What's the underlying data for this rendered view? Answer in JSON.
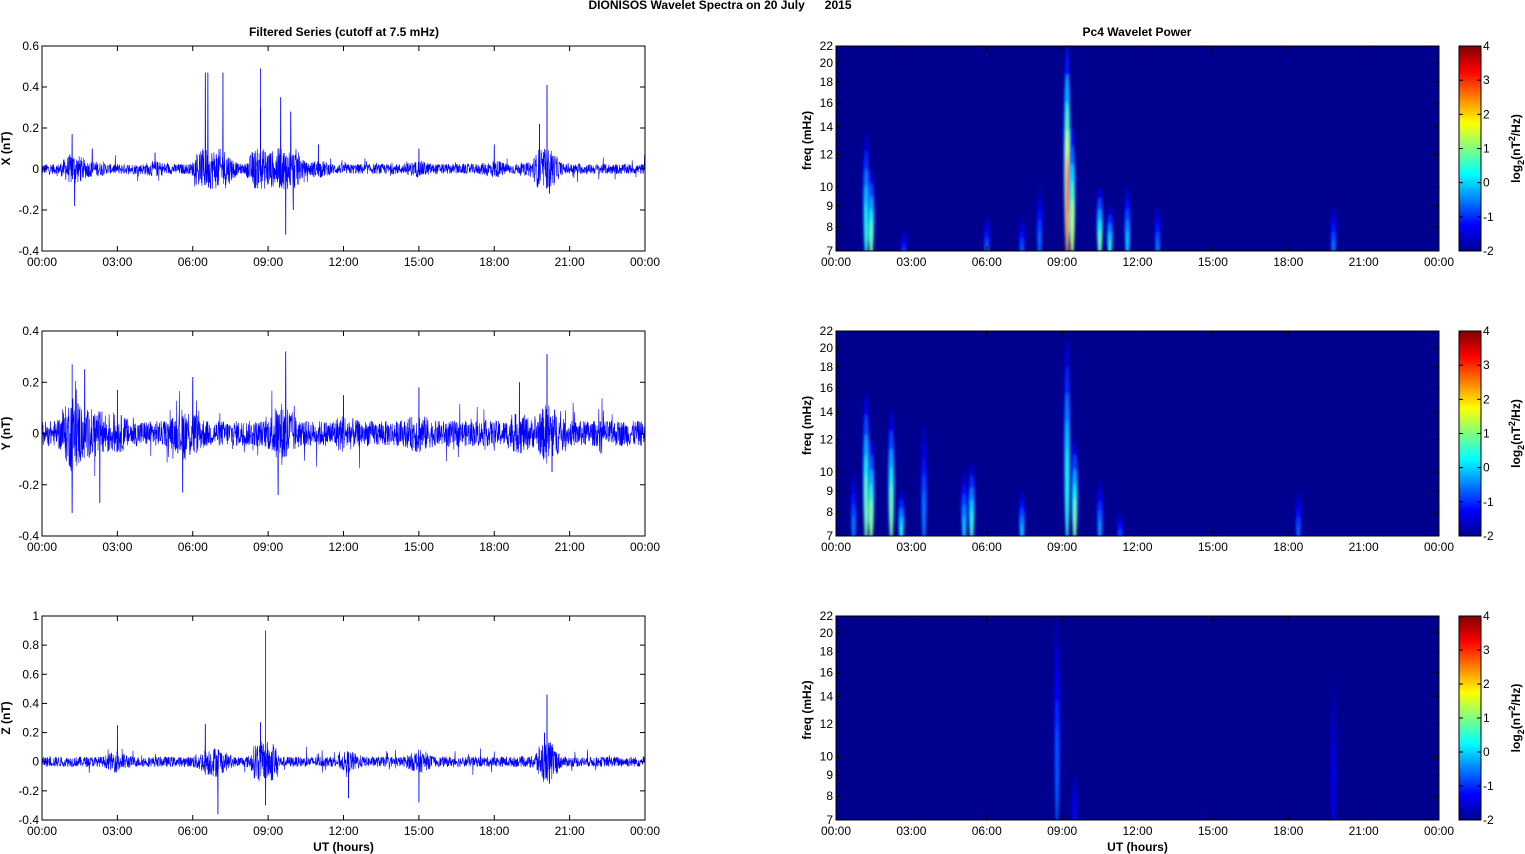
{
  "figure": {
    "title": "DIONISOS Wavelet Spectra on 20 July      2015",
    "left_title": "Filtered Series (cutoff at 7.5 mHz)",
    "right_title": "Pc4 Wavelet Power",
    "xlabel": "UT (hours)"
  },
  "colors": {
    "trace": "#0000ff",
    "spectrogram_background": "#00008f",
    "axis": "#000000",
    "colormap": "jet"
  },
  "chart_data": [
    {
      "type": "line",
      "title": "Filtered Series (cutoff at 7.5 mHz)",
      "ylabel": "X (nT)",
      "xlabel": "",
      "x_tick_labels": [
        "00:00",
        "03:00",
        "06:00",
        "09:00",
        "12:00",
        "15:00",
        "18:00",
        "21:00",
        "00:00"
      ],
      "xlim_hours": [
        0,
        24
      ],
      "ylim": [
        -0.4,
        0.6
      ],
      "y_ticks": [
        -0.4,
        -0.2,
        0,
        0.2,
        0.4,
        0.6
      ],
      "y_tick_labels": [
        "-0.4",
        "-0.2",
        "0",
        "0.2",
        "0.4",
        "0.6"
      ],
      "grid": false,
      "noise_amplitude": 0.025,
      "series": [
        {
          "values": [
            [
              0,
              0
            ],
            [
              1.2,
              0.17
            ],
            [
              1.3,
              -0.18
            ],
            [
              2.0,
              0.1
            ],
            [
              4.5,
              0.08
            ],
            [
              6.5,
              0.47
            ],
            [
              6.6,
              0.47
            ],
            [
              7.2,
              0.47
            ],
            [
              8.7,
              0.49
            ],
            [
              8.7,
              0.3
            ],
            [
              9.5,
              0.35
            ],
            [
              9.7,
              -0.32
            ],
            [
              9.9,
              0.28
            ],
            [
              10,
              -0.2
            ],
            [
              11,
              0.12
            ],
            [
              15,
              0.1
            ],
            [
              18,
              0.12
            ],
            [
              19.8,
              0.22
            ],
            [
              20.1,
              0.41
            ],
            [
              20.2,
              -0.12
            ],
            [
              24,
              0
            ]
          ]
        }
      ]
    },
    {
      "type": "line",
      "title": "",
      "ylabel": "Y (nT)",
      "xlabel": "",
      "x_tick_labels": [
        "00:00",
        "03:00",
        "06:00",
        "09:00",
        "12:00",
        "15:00",
        "18:00",
        "21:00",
        "00:00"
      ],
      "xlim_hours": [
        0,
        24
      ],
      "ylim": [
        -0.4,
        0.4
      ],
      "y_ticks": [
        -0.4,
        -0.2,
        0,
        0.2,
        0.4
      ],
      "y_tick_labels": [
        "-0.4",
        "-0.2",
        "0",
        "0.2",
        "0.4"
      ],
      "grid": false,
      "noise_amplitude": 0.05,
      "series": [
        {
          "values": [
            [
              0,
              0
            ],
            [
              1.2,
              0.27
            ],
            [
              1.2,
              -0.31
            ],
            [
              1.7,
              0.25
            ],
            [
              2.3,
              -0.27
            ],
            [
              3.0,
              0.17
            ],
            [
              5.6,
              -0.23
            ],
            [
              6.0,
              0.22
            ],
            [
              9.4,
              -0.24
            ],
            [
              9.7,
              0.32
            ],
            [
              12,
              0.15
            ],
            [
              15,
              0.18
            ],
            [
              19,
              0.2
            ],
            [
              20.1,
              0.31
            ],
            [
              20.3,
              -0.15
            ],
            [
              24,
              0
            ]
          ]
        }
      ]
    },
    {
      "type": "line",
      "title": "",
      "ylabel": "Z (nT)",
      "xlabel": "UT (hours)",
      "x_tick_labels": [
        "00:00",
        "03:00",
        "06:00",
        "09:00",
        "12:00",
        "15:00",
        "18:00",
        "21:00",
        "00:00"
      ],
      "xlim_hours": [
        0,
        24
      ],
      "ylim": [
        -0.4,
        1
      ],
      "y_ticks": [
        -0.4,
        -0.2,
        0,
        0.2,
        0.4,
        0.6,
        0.8,
        1
      ],
      "y_tick_labels": [
        "-0.4",
        "-0.2",
        "0",
        "0.2",
        "0.4",
        "0.6",
        "0.8",
        "1"
      ],
      "grid": false,
      "noise_amplitude": 0.035,
      "series": [
        {
          "values": [
            [
              0,
              0
            ],
            [
              3,
              0.25
            ],
            [
              6.5,
              0.26
            ],
            [
              7.0,
              -0.36
            ],
            [
              8.7,
              0.27
            ],
            [
              8.9,
              0.9
            ],
            [
              8.9,
              -0.3
            ],
            [
              12.2,
              -0.25
            ],
            [
              15.0,
              -0.28
            ],
            [
              20.0,
              0.2
            ],
            [
              20.1,
              0.46
            ],
            [
              20.2,
              -0.15
            ],
            [
              24,
              0
            ]
          ]
        }
      ]
    },
    {
      "type": "heatmap",
      "title": "Pc4 Wavelet Power",
      "ylabel": "freq (mHz)",
      "xlabel": "",
      "x_tick_labels": [
        "00:00",
        "03:00",
        "06:00",
        "09:00",
        "12:00",
        "15:00",
        "18:00",
        "21:00",
        "00:00"
      ],
      "xlim_hours": [
        0,
        24
      ],
      "y_scale": "log",
      "ylim_mhz": [
        7,
        22
      ],
      "y_ticks": [
        7,
        8,
        9,
        10,
        12,
        14,
        16,
        18,
        20,
        22
      ],
      "y_tick_labels": [
        "7",
        "8",
        "9",
        "10",
        "12",
        "14",
        "16",
        "18",
        "20",
        "22"
      ],
      "colorbar": {
        "label": "log2(nT2/Hz)",
        "label_parts": [
          "log",
          "2",
          "(nT",
          "2",
          "/Hz)"
        ],
        "range": [
          -2,
          4
        ],
        "ticks": [
          -2,
          -1,
          0,
          1,
          2,
          3,
          4
        ],
        "tick_labels": [
          "-2",
          "-1",
          "0",
          "1",
          "2",
          "3",
          "4"
        ]
      },
      "features": [
        {
          "t_hours": 1.2,
          "f_top_mhz": 13.5,
          "level": 0.5
        },
        {
          "t_hours": 1.4,
          "f_top_mhz": 11,
          "level": 1
        },
        {
          "t_hours": 2.7,
          "f_top_mhz": 7.8,
          "level": -0.5
        },
        {
          "t_hours": 6.0,
          "f_top_mhz": 8.5,
          "level": -0.5
        },
        {
          "t_hours": 7.4,
          "f_top_mhz": 8.5,
          "level": -0.6
        },
        {
          "t_hours": 8.1,
          "f_top_mhz": 10,
          "level": -0.6
        },
        {
          "t_hours": 9.2,
          "f_top_mhz": 22,
          "level": 2.5
        },
        {
          "t_hours": 9.4,
          "f_top_mhz": 14,
          "level": 1.5
        },
        {
          "t_hours": 10.5,
          "f_top_mhz": 10,
          "level": 1
        },
        {
          "t_hours": 10.9,
          "f_top_mhz": 9,
          "level": 0.5
        },
        {
          "t_hours": 11.6,
          "f_top_mhz": 10,
          "level": 0
        },
        {
          "t_hours": 12.8,
          "f_top_mhz": 9,
          "level": -0.5
        },
        {
          "t_hours": 19.8,
          "f_top_mhz": 9,
          "level": -0.5
        }
      ]
    },
    {
      "type": "heatmap",
      "title": "",
      "ylabel": "freq (mHz)",
      "xlabel": "",
      "x_tick_labels": [
        "00:00",
        "03:00",
        "06:00",
        "09:00",
        "12:00",
        "15:00",
        "18:00",
        "21:00",
        "00:00"
      ],
      "xlim_hours": [
        0,
        24
      ],
      "y_scale": "log",
      "ylim_mhz": [
        7,
        22
      ],
      "y_ticks": [
        7,
        8,
        9,
        10,
        12,
        14,
        16,
        18,
        20,
        22
      ],
      "y_tick_labels": [
        "7",
        "8",
        "9",
        "10",
        "12",
        "14",
        "16",
        "18",
        "20",
        "22"
      ],
      "colorbar": {
        "label": "log2(nT2/Hz)",
        "label_parts": [
          "log",
          "2",
          "(nT",
          "2",
          "/Hz)"
        ],
        "range": [
          -2,
          4
        ],
        "ticks": [
          -2,
          -1,
          0,
          1,
          2,
          3,
          4
        ],
        "tick_labels": [
          "-2",
          "-1",
          "0",
          "1",
          "2",
          "3",
          "4"
        ]
      },
      "features": [
        {
          "t_hours": 0.7,
          "f_top_mhz": 10,
          "level": -0.5
        },
        {
          "t_hours": 1.2,
          "f_top_mhz": 15.5,
          "level": 1
        },
        {
          "t_hours": 1.4,
          "f_top_mhz": 12,
          "level": 1.2
        },
        {
          "t_hours": 2.2,
          "f_top_mhz": 14,
          "level": 1
        },
        {
          "t_hours": 2.6,
          "f_top_mhz": 9,
          "level": 0.5
        },
        {
          "t_hours": 3.5,
          "f_top_mhz": 13,
          "level": -0.5
        },
        {
          "t_hours": 5.1,
          "f_top_mhz": 10,
          "level": 0
        },
        {
          "t_hours": 5.4,
          "f_top_mhz": 10.5,
          "level": 0.6
        },
        {
          "t_hours": 7.4,
          "f_top_mhz": 9,
          "level": 0
        },
        {
          "t_hours": 9.2,
          "f_top_mhz": 21,
          "level": 0.5
        },
        {
          "t_hours": 9.5,
          "f_top_mhz": 12,
          "level": 1
        },
        {
          "t_hours": 10.5,
          "f_top_mhz": 9.5,
          "level": -0.3
        },
        {
          "t_hours": 11.3,
          "f_top_mhz": 8,
          "level": -0.5
        },
        {
          "t_hours": 18.4,
          "f_top_mhz": 9,
          "level": -0.6
        }
      ]
    },
    {
      "type": "heatmap",
      "title": "",
      "ylabel": "freq (mHz)",
      "xlabel": "UT (hours)",
      "x_tick_labels": [
        "00:00",
        "03:00",
        "06:00",
        "09:00",
        "12:00",
        "15:00",
        "18:00",
        "21:00",
        "00:00"
      ],
      "xlim_hours": [
        0,
        24
      ],
      "y_scale": "log",
      "ylim_mhz": [
        7,
        22
      ],
      "y_ticks": [
        7,
        8,
        9,
        10,
        12,
        14,
        16,
        18,
        20,
        22
      ],
      "y_tick_labels": [
        "7",
        "8",
        "9",
        "10",
        "12",
        "14",
        "16",
        "18",
        "20",
        "22"
      ],
      "colorbar": {
        "label": "log2(nT2/Hz)",
        "label_parts": [
          "log",
          "2",
          "(nT",
          "2",
          "/Hz)"
        ],
        "range": [
          -2,
          4
        ],
        "ticks": [
          -2,
          -1,
          0,
          1,
          2,
          3,
          4
        ],
        "tick_labels": [
          "-2",
          "-1",
          "0",
          "1",
          "2",
          "3",
          "4"
        ]
      },
      "features": [
        {
          "t_hours": 8.8,
          "f_top_mhz": 22,
          "level": -0.7
        },
        {
          "t_hours": 9.5,
          "f_top_mhz": 9,
          "level": -1.2
        },
        {
          "t_hours": 19.8,
          "f_top_mhz": 15,
          "level": -1.3
        }
      ]
    }
  ]
}
